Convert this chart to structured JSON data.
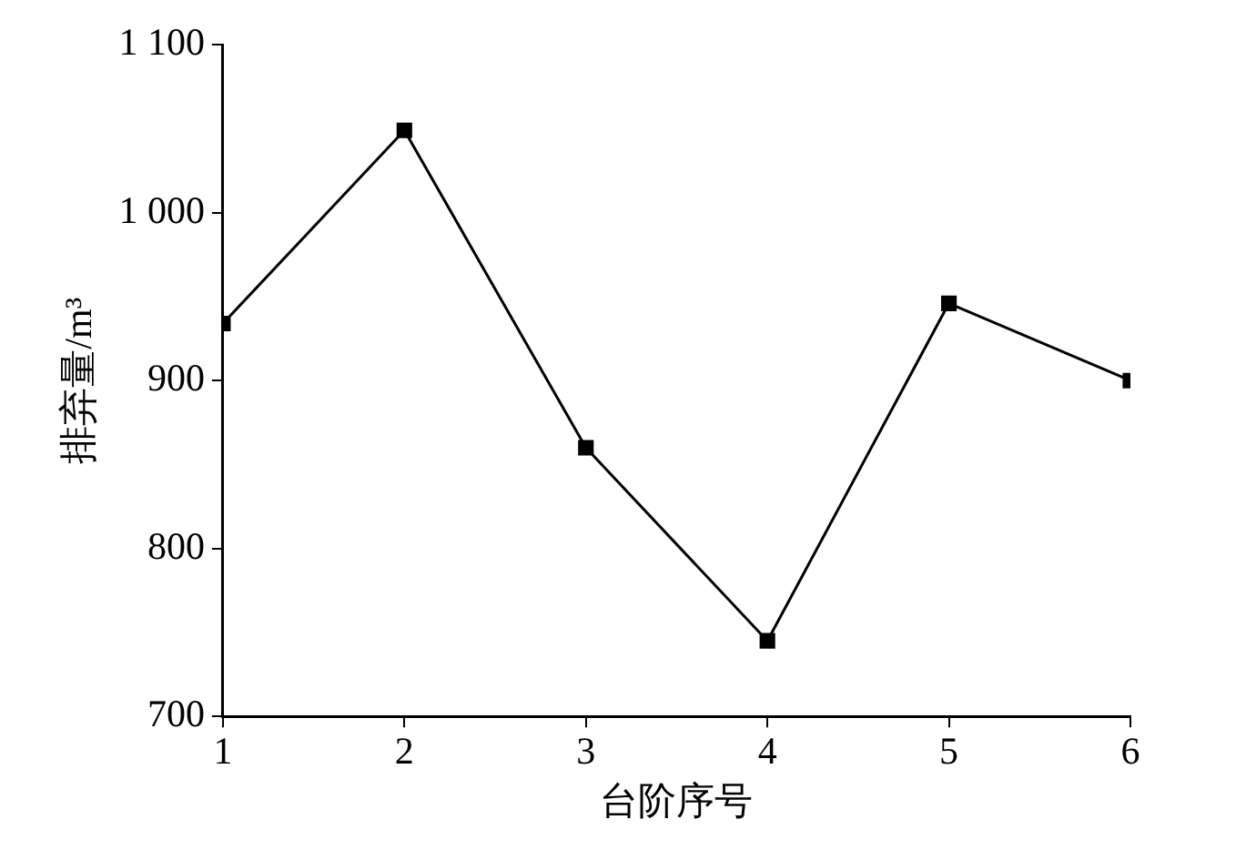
{
  "chart_data": {
    "type": "line",
    "xlabel": "台阶序号",
    "ylabel": "排弃量/m³",
    "x": [
      1,
      2,
      3,
      4,
      5,
      6
    ],
    "series": [
      {
        "color": "#000000",
        "values": [
          934,
          1049,
          860,
          745,
          946,
          900
        ]
      }
    ],
    "xlim": [
      1,
      6
    ],
    "xticks": [
      1,
      2,
      3,
      4,
      5,
      6
    ],
    "ylim": [
      700,
      1100
    ],
    "yticks": [
      700,
      800,
      900,
      {
        "value": 1000,
        "label": "1 000"
      },
      {
        "value": 1100,
        "label": "1 100"
      }
    ],
    "grid": false,
    "legend": false,
    "marker": "square",
    "line_style": "solid"
  }
}
